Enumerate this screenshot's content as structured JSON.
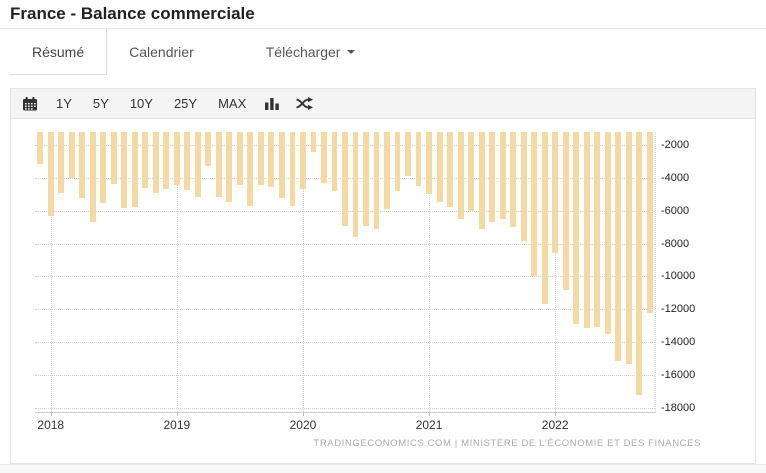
{
  "header": {
    "title": "France - Balance commerciale"
  },
  "tabs": [
    {
      "label": "Résumé",
      "active": true
    },
    {
      "label": "Calendrier",
      "active": false
    },
    {
      "label": "Télécharger",
      "active": false,
      "dropdown": true
    }
  ],
  "toolbar": {
    "icons": [
      "calendar-icon",
      "bar-chart-icon",
      "shuffle-icon"
    ],
    "ranges": [
      "1Y",
      "5Y",
      "10Y",
      "25Y",
      "MAX"
    ]
  },
  "attribution": "TRADINGECONOMICS.COM  |  MINISTÈRE DE L'ÉCONOMIE ET DES FINANCES",
  "chart_data": {
    "type": "bar",
    "title": "France - Balance commerciale",
    "bar_color": "#f3d9a4",
    "grid": true,
    "legend": false,
    "ylim": [
      -18260,
      -1200
    ],
    "yticks": [
      -2000,
      -4000,
      -6000,
      -8000,
      -10000,
      -12000,
      -14000,
      -16000,
      -18000
    ],
    "year_labels": [
      "2018",
      "2019",
      "2020",
      "2021",
      "2022"
    ],
    "x": [
      "2017-12",
      "2018-01",
      "2018-02",
      "2018-03",
      "2018-04",
      "2018-05",
      "2018-06",
      "2018-07",
      "2018-08",
      "2018-09",
      "2018-10",
      "2018-11",
      "2018-12",
      "2019-01",
      "2019-02",
      "2019-03",
      "2019-04",
      "2019-05",
      "2019-06",
      "2019-07",
      "2019-08",
      "2019-09",
      "2019-10",
      "2019-11",
      "2019-12",
      "2020-01",
      "2020-02",
      "2020-03",
      "2020-04",
      "2020-05",
      "2020-06",
      "2020-07",
      "2020-08",
      "2020-09",
      "2020-10",
      "2020-11",
      "2020-12",
      "2021-01",
      "2021-02",
      "2021-03",
      "2021-04",
      "2021-05",
      "2021-06",
      "2021-07",
      "2021-08",
      "2021-09",
      "2021-10",
      "2021-11",
      "2021-12",
      "2022-01",
      "2022-02",
      "2022-03",
      "2022-04",
      "2022-05",
      "2022-06",
      "2022-07",
      "2022-08",
      "2022-09",
      "2022-10"
    ],
    "values": [
      -3150,
      -6300,
      -4900,
      -4000,
      -5250,
      -6700,
      -5550,
      -4350,
      -5850,
      -5750,
      -4600,
      -4900,
      -4700,
      -4400,
      -4750,
      -5150,
      -3250,
      -5150,
      -5450,
      -4450,
      -5700,
      -4450,
      -4550,
      -5250,
      -5700,
      -4650,
      -2400,
      -4300,
      -4800,
      -6900,
      -7600,
      -6900,
      -7100,
      -5900,
      -4800,
      -3900,
      -4500,
      -4950,
      -5450,
      -5800,
      -6500,
      -6000,
      -7100,
      -6700,
      -6500,
      -7000,
      -7850,
      -10000,
      -11700,
      -8600,
      -10850,
      -12900,
      -13150,
      -13100,
      -13500,
      -15150,
      -15350,
      -17200,
      -12200
    ]
  }
}
